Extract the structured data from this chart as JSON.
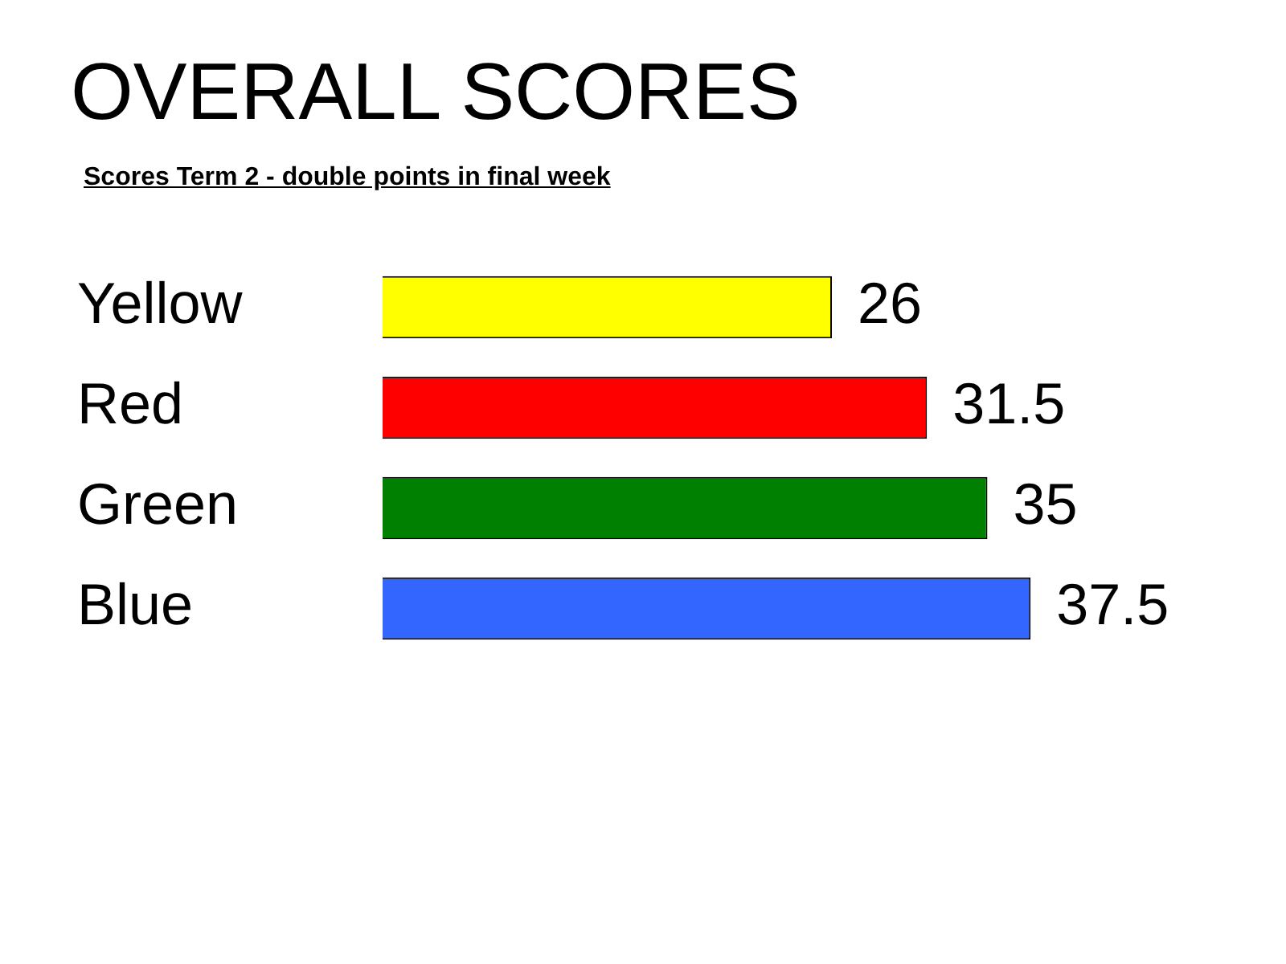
{
  "chart_data": {
    "type": "bar",
    "orientation": "horizontal",
    "title": "OVERALL SCORES",
    "subtitle": "Scores Term 2 - double points in final week",
    "categories": [
      "Yellow",
      "Red",
      "Green",
      "Blue"
    ],
    "values": [
      26,
      31.5,
      35,
      37.5
    ],
    "colors": [
      "#ffff00",
      "#ff0000",
      "#008000",
      "#3366ff"
    ],
    "data_labels": true,
    "legend": false
  }
}
